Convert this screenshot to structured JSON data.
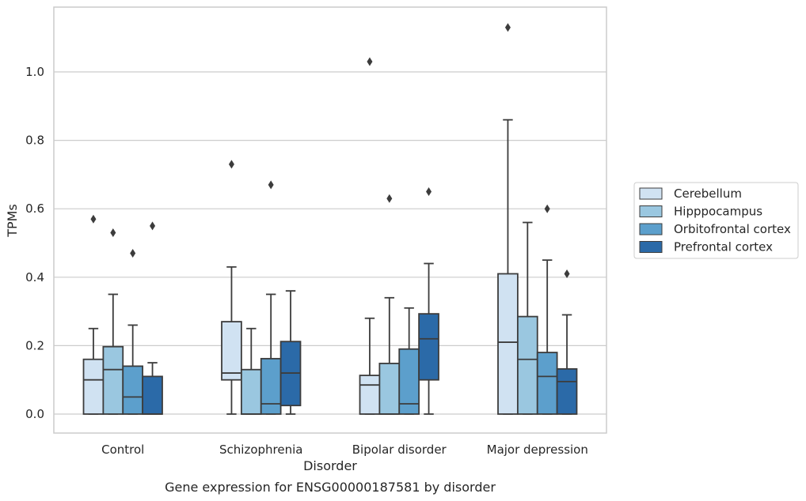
{
  "chart_data": {
    "type": "boxplot",
    "xlabel": "Disorder",
    "ylabel": "TPMs",
    "caption": "Gene expression for ENSG00000187581 by disorder",
    "ylim": [
      -0.055,
      1.19
    ],
    "yticks": [
      "0.0",
      "0.2",
      "0.4",
      "0.6",
      "0.8",
      "1.0"
    ],
    "grid": "horizontal",
    "legend_position": "right",
    "categories": [
      "Control",
      "Schizophrenia",
      "Bipolar disorder",
      "Major depression"
    ],
    "series": [
      {
        "name": "Cerebellum",
        "color": "#d0e2f2",
        "boxes": [
          {
            "whisker_low": 0.0,
            "q1": 0.0,
            "median": 0.1,
            "q3": 0.16,
            "whisker_high": 0.25,
            "outliers": [
              0.57
            ]
          },
          {
            "whisker_low": 0.0,
            "q1": 0.1,
            "median": 0.12,
            "q3": 0.27,
            "whisker_high": 0.43,
            "outliers": [
              0.73
            ]
          },
          {
            "whisker_low": 0.0,
            "q1": 0.0,
            "median": 0.085,
            "q3": 0.113,
            "whisker_high": 0.28,
            "outliers": [
              1.03
            ]
          },
          {
            "whisker_low": 0.0,
            "q1": 0.0,
            "median": 0.21,
            "q3": 0.41,
            "whisker_high": 0.86,
            "outliers": [
              1.13
            ]
          }
        ]
      },
      {
        "name": "Hipppocampus",
        "color": "#9ac7e0",
        "boxes": [
          {
            "whisker_low": 0.0,
            "q1": 0.0,
            "median": 0.13,
            "q3": 0.197,
            "whisker_high": 0.35,
            "outliers": [
              0.53
            ]
          },
          {
            "whisker_low": 0.0,
            "q1": 0.0,
            "median": 0.0,
            "q3": 0.13,
            "whisker_high": 0.25,
            "outliers": []
          },
          {
            "whisker_low": 0.0,
            "q1": 0.0,
            "median": 0.0,
            "q3": 0.148,
            "whisker_high": 0.34,
            "outliers": [
              0.63
            ]
          },
          {
            "whisker_low": 0.0,
            "q1": 0.0,
            "median": 0.16,
            "q3": 0.285,
            "whisker_high": 0.56,
            "outliers": []
          }
        ]
      },
      {
        "name": "Orbitofrontal cortex",
        "color": "#5c9fcc",
        "boxes": [
          {
            "whisker_low": 0.0,
            "q1": 0.0,
            "median": 0.05,
            "q3": 0.14,
            "whisker_high": 0.26,
            "outliers": [
              0.47
            ]
          },
          {
            "whisker_low": 0.0,
            "q1": 0.0,
            "median": 0.03,
            "q3": 0.162,
            "whisker_high": 0.35,
            "outliers": [
              0.67
            ]
          },
          {
            "whisker_low": 0.0,
            "q1": 0.0,
            "median": 0.03,
            "q3": 0.19,
            "whisker_high": 0.31,
            "outliers": []
          },
          {
            "whisker_low": 0.0,
            "q1": 0.0,
            "median": 0.11,
            "q3": 0.18,
            "whisker_high": 0.45,
            "outliers": [
              0.6
            ]
          }
        ]
      },
      {
        "name": "Prefrontal cortex",
        "color": "#2b6aa8",
        "boxes": [
          {
            "whisker_low": 0.0,
            "q1": 0.0,
            "median": 0.0,
            "q3": 0.11,
            "whisker_high": 0.15,
            "outliers": [
              0.55
            ]
          },
          {
            "whisker_low": 0.0,
            "q1": 0.025,
            "median": 0.12,
            "q3": 0.212,
            "whisker_high": 0.36,
            "outliers": []
          },
          {
            "whisker_low": 0.0,
            "q1": 0.1,
            "median": 0.22,
            "q3": 0.293,
            "whisker_high": 0.44,
            "outliers": [
              0.65
            ]
          },
          {
            "whisker_low": 0.0,
            "q1": 0.0,
            "median": 0.095,
            "q3": 0.132,
            "whisker_high": 0.29,
            "outliers": [
              0.41
            ]
          }
        ]
      }
    ]
  }
}
